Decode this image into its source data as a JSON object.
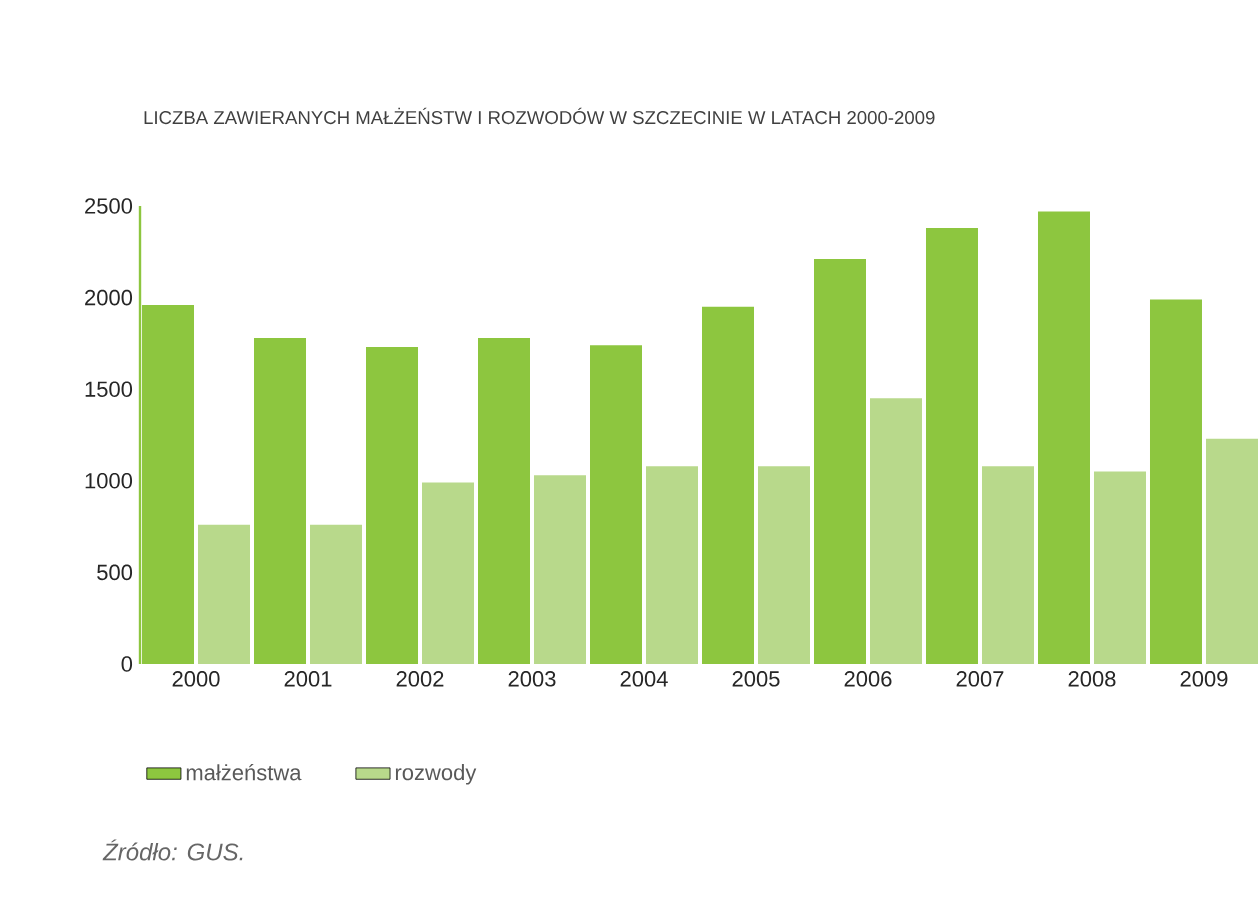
{
  "chart_data": {
    "type": "bar",
    "title": "LICZBA ZAWIERANYCH MAŁŻEŃSTW I ROZWODÓW W SZCZECINIE W LATACH 2000-2009",
    "categories": [
      "2000",
      "2001",
      "2002",
      "2003",
      "2004",
      "2005",
      "2006",
      "2007",
      "2008",
      "2009"
    ],
    "series": [
      {
        "name": "małżeństwa",
        "color": "#8dc63f",
        "values": [
          1960,
          1780,
          1730,
          1780,
          1740,
          1950,
          2210,
          2380,
          2470,
          1990
        ]
      },
      {
        "name": "rozwody",
        "color": "#b8d98b",
        "values": [
          760,
          760,
          990,
          1030,
          1080,
          1080,
          1450,
          1080,
          1050,
          1230
        ]
      }
    ],
    "ylim": [
      0,
      2500
    ],
    "yticks": [
      0,
      500,
      1000,
      1500,
      2000,
      2500
    ],
    "legend": "bottom",
    "annotations": [
      "Źródło: GUS."
    ]
  }
}
